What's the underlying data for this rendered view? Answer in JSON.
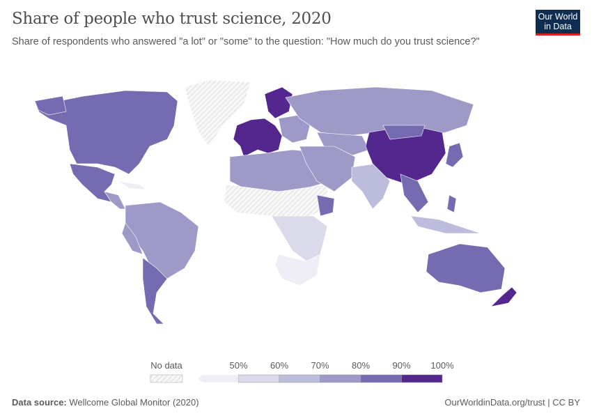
{
  "header": {
    "title": "Share of people who trust science, 2020",
    "subtitle": "Share of respondents who answered \"a lot\" or \"some\" to the question: \"How much do you trust science?\"",
    "logo": "Our World in Data"
  },
  "legend": {
    "no_data_label": "No data",
    "ticks": [
      "50%",
      "60%",
      "70%",
      "80%",
      "90%",
      "100%"
    ],
    "bins": [
      {
        "range": "<50%",
        "color": "#efedf5"
      },
      {
        "range": "50-60%",
        "color": "#dadaeb"
      },
      {
        "range": "60-70%",
        "color": "#bcbddc"
      },
      {
        "range": "70-80%",
        "color": "#9e9ac8"
      },
      {
        "range": "80-90%",
        "color": "#756bb1"
      },
      {
        "range": "90-100%",
        "color": "#54278f"
      }
    ]
  },
  "footer": {
    "source_label": "Data source:",
    "source": "Wellcome Global Monitor (2020)",
    "link": "OurWorldinData.org/trust | CC BY"
  }
}
